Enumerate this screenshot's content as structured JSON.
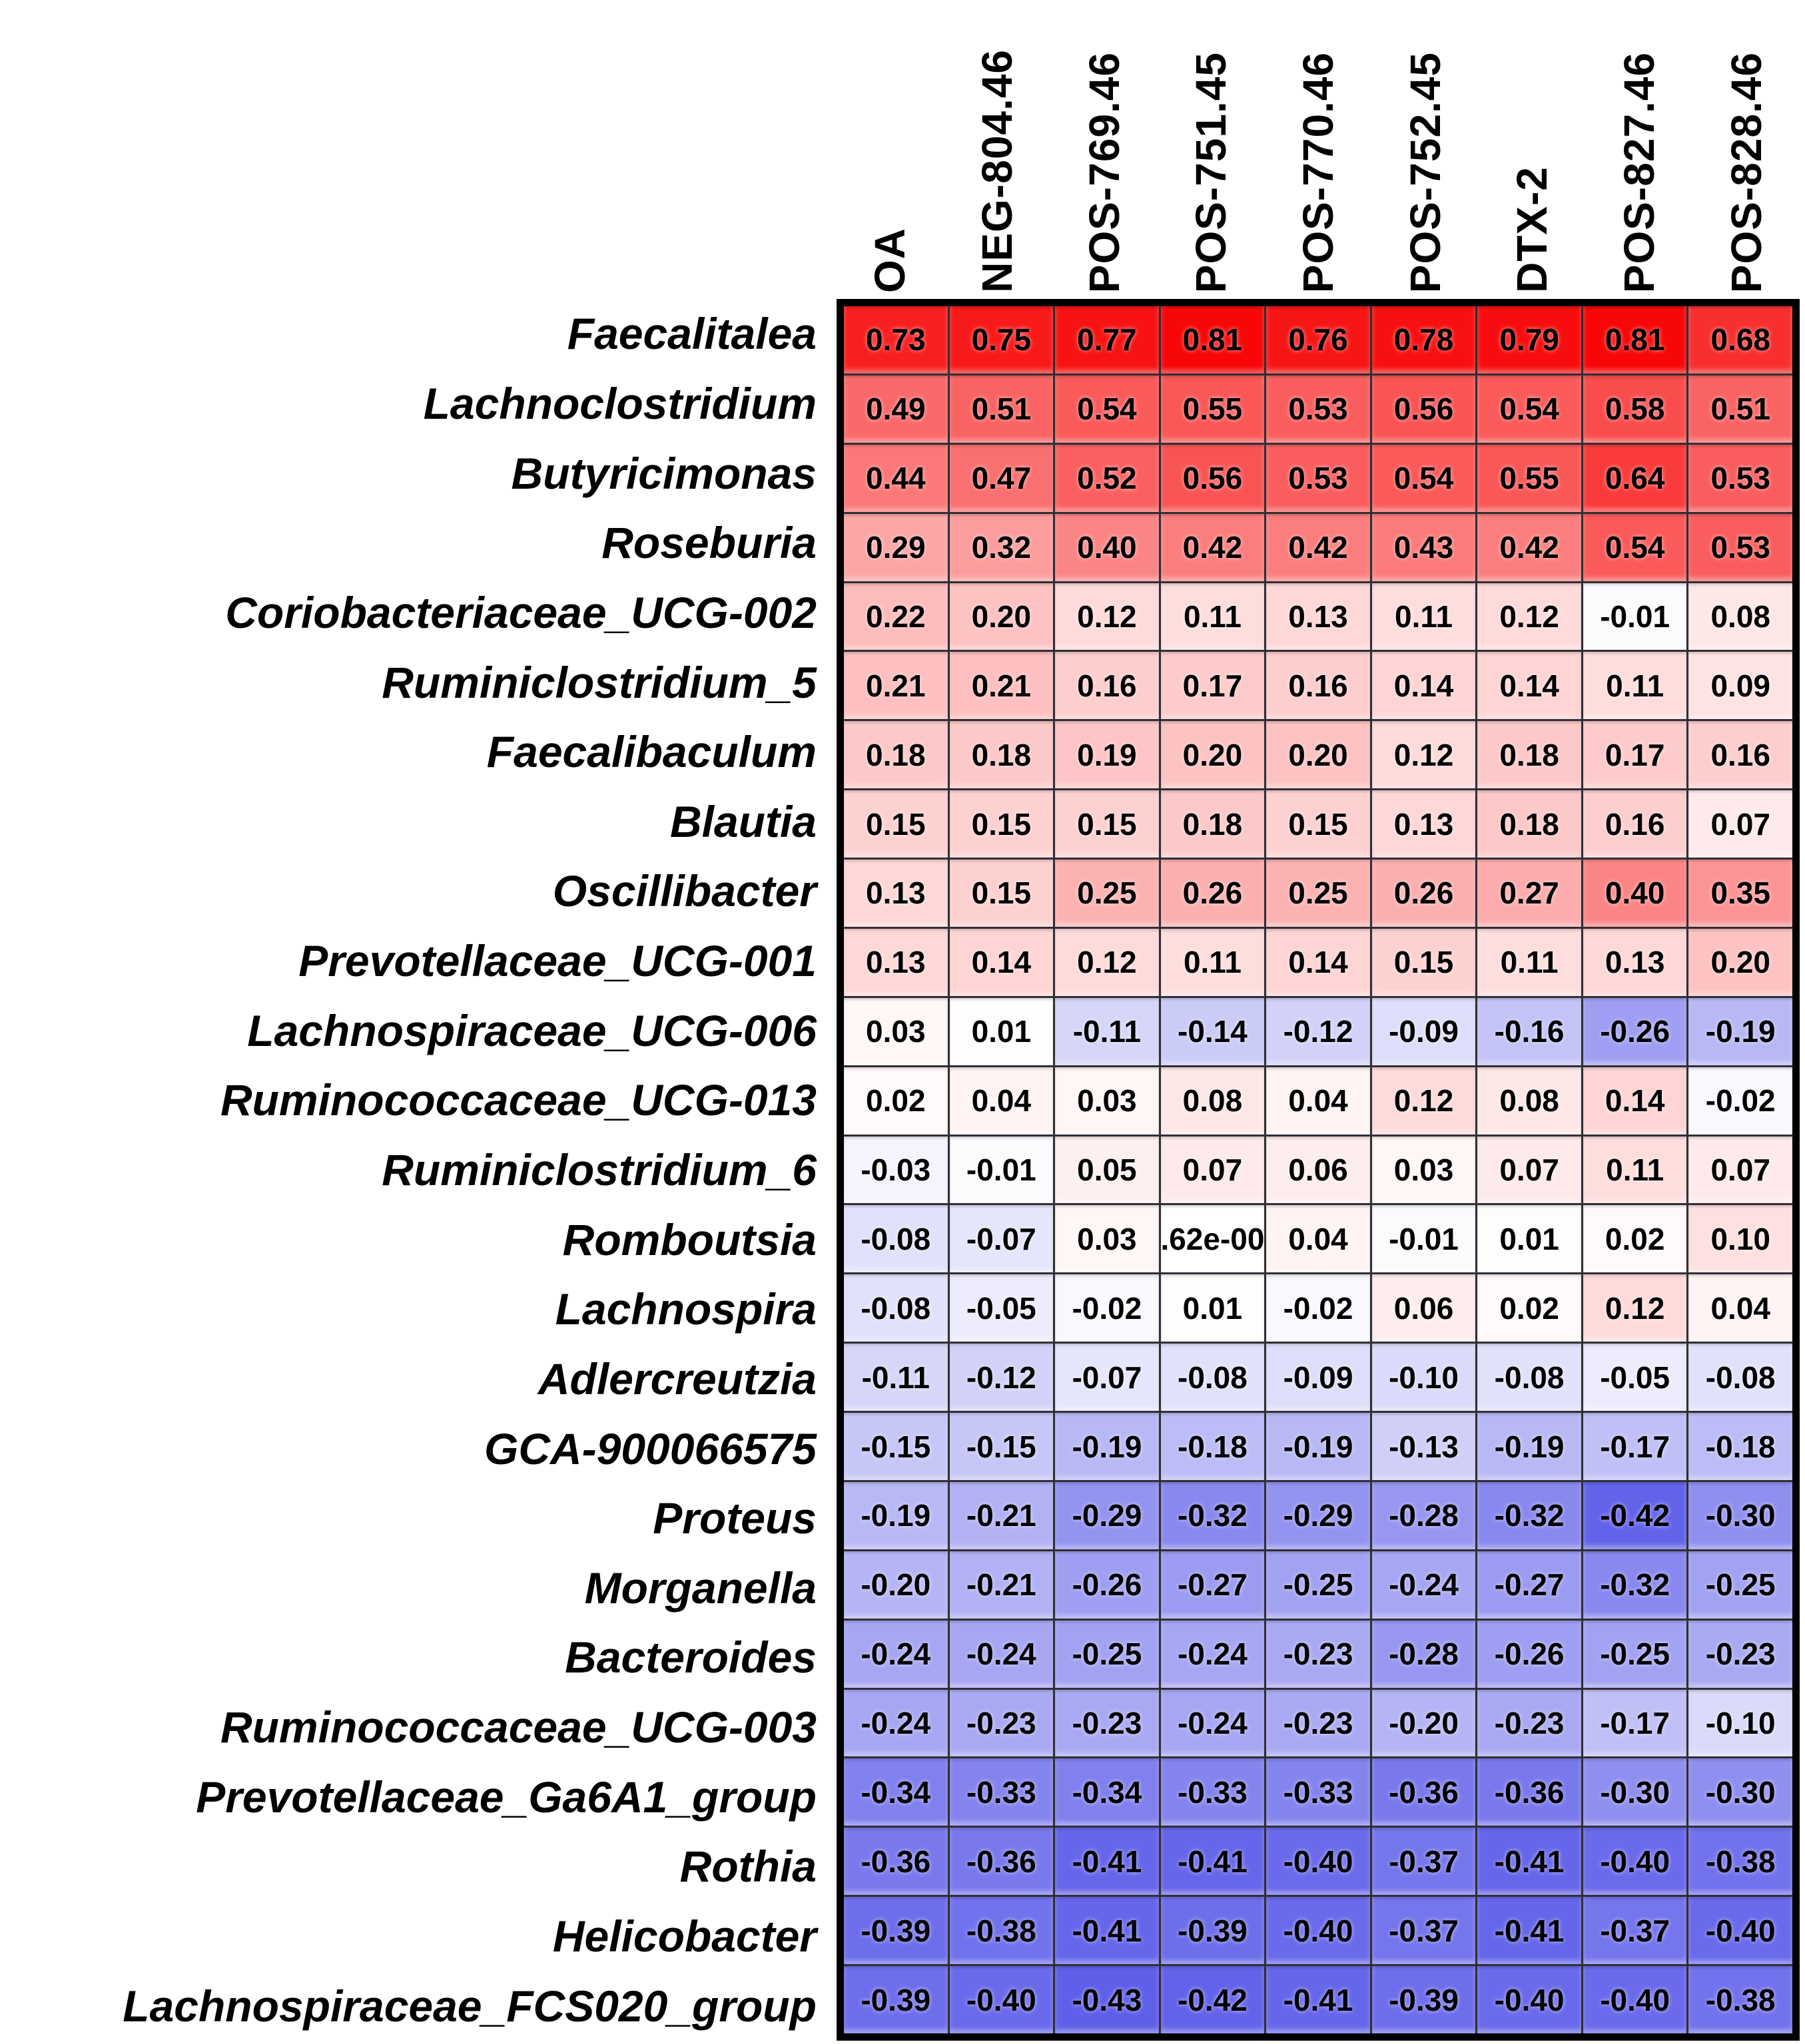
{
  "figure": {
    "background": "#ffffff"
  },
  "chart_data": {
    "type": "heatmap",
    "title": "",
    "legend": "none",
    "columns": [
      "OA",
      "NEG-804.46",
      "POS-769.46",
      "POS-751.45",
      "POS-770.46",
      "POS-752.45",
      "DTX-2",
      "POS-827.46",
      "POS-828.46"
    ],
    "rows": [
      "Faecalitalea",
      "Lachnoclostridium",
      "Butyricimonas",
      "Roseburia",
      "Coriobacteriaceae_UCG-002",
      "Ruminiclostridium_5",
      "Faecalibaculum",
      "Blautia",
      "Oscillibacter",
      "Prevotellaceae_UCG-001",
      "Lachnospiraceae_UCG-006",
      "Ruminococcaceae_UCG-013",
      "Ruminiclostridium_6",
      "Romboutsia",
      "Lachnospira",
      "Adlercreutzia",
      "GCA-900066575",
      "Proteus",
      "Morganella",
      "Bacteroides",
      "Ruminococcaceae_UCG-003",
      "Prevotellaceae_Ga6A1_group",
      "Rothia",
      "Helicobacter",
      "Lachnospiraceae_FCS020_group"
    ],
    "cells": [
      [
        "0.73",
        "0.75",
        "0.77",
        "0.81",
        "0.76",
        "0.78",
        "0.79",
        "0.81",
        "0.68"
      ],
      [
        "0.49",
        "0.51",
        "0.54",
        "0.55",
        "0.53",
        "0.56",
        "0.54",
        "0.58",
        "0.51"
      ],
      [
        "0.44",
        "0.47",
        "0.52",
        "0.56",
        "0.53",
        "0.54",
        "0.55",
        "0.64",
        "0.53"
      ],
      [
        "0.29",
        "0.32",
        "0.40",
        "0.42",
        "0.42",
        "0.43",
        "0.42",
        "0.54",
        "0.53"
      ],
      [
        "0.22",
        "0.20",
        "0.12",
        "0.11",
        "0.13",
        "0.11",
        "0.12",
        "-0.01",
        "0.08"
      ],
      [
        "0.21",
        "0.21",
        "0.16",
        "0.17",
        "0.16",
        "0.14",
        "0.14",
        "0.11",
        "0.09"
      ],
      [
        "0.18",
        "0.18",
        "0.19",
        "0.20",
        "0.20",
        "0.12",
        "0.18",
        "0.17",
        "0.16"
      ],
      [
        "0.15",
        "0.15",
        "0.15",
        "0.18",
        "0.15",
        "0.13",
        "0.18",
        "0.16",
        "0.07"
      ],
      [
        "0.13",
        "0.15",
        "0.25",
        "0.26",
        "0.25",
        "0.26",
        "0.27",
        "0.40",
        "0.35"
      ],
      [
        "0.13",
        "0.14",
        "0.12",
        "0.11",
        "0.14",
        "0.15",
        "0.11",
        "0.13",
        "0.20"
      ],
      [
        "0.03",
        "0.01",
        "-0.11",
        "-0.14",
        "-0.12",
        "-0.09",
        "-0.16",
        "-0.26",
        "-0.19"
      ],
      [
        "0.02",
        "0.04",
        "0.03",
        "0.08",
        "0.04",
        "0.12",
        "0.08",
        "0.14",
        "-0.02"
      ],
      [
        "-0.03",
        "-0.01",
        "0.05",
        "0.07",
        "0.06",
        "0.03",
        "0.07",
        "0.11",
        "0.07"
      ],
      [
        "-0.08",
        "-0.07",
        "0.03",
        ".62e-00",
        "0.04",
        "-0.01",
        "0.01",
        "0.02",
        "0.10"
      ],
      [
        "-0.08",
        "-0.05",
        "-0.02",
        "0.01",
        "-0.02",
        "0.06",
        "0.02",
        "0.12",
        "0.04"
      ],
      [
        "-0.11",
        "-0.12",
        "-0.07",
        "-0.08",
        "-0.09",
        "-0.10",
        "-0.08",
        "-0.05",
        "-0.08"
      ],
      [
        "-0.15",
        "-0.15",
        "-0.19",
        "-0.18",
        "-0.19",
        "-0.13",
        "-0.19",
        "-0.17",
        "-0.18"
      ],
      [
        "-0.19",
        "-0.21",
        "-0.29",
        "-0.32",
        "-0.29",
        "-0.28",
        "-0.32",
        "-0.42",
        "-0.30"
      ],
      [
        "-0.20",
        "-0.21",
        "-0.26",
        "-0.27",
        "-0.25",
        "-0.24",
        "-0.27",
        "-0.32",
        "-0.25"
      ],
      [
        "-0.24",
        "-0.24",
        "-0.25",
        "-0.24",
        "-0.23",
        "-0.28",
        "-0.26",
        "-0.25",
        "-0.23"
      ],
      [
        "-0.24",
        "-0.23",
        "-0.23",
        "-0.24",
        "-0.23",
        "-0.20",
        "-0.23",
        "-0.17",
        "-0.10"
      ],
      [
        "-0.34",
        "-0.33",
        "-0.34",
        "-0.33",
        "-0.33",
        "-0.36",
        "-0.36",
        "-0.30",
        "-0.30"
      ],
      [
        "-0.36",
        "-0.36",
        "-0.41",
        "-0.41",
        "-0.40",
        "-0.37",
        "-0.41",
        "-0.40",
        "-0.38"
      ],
      [
        "-0.39",
        "-0.38",
        "-0.41",
        "-0.39",
        "-0.40",
        "-0.37",
        "-0.41",
        "-0.37",
        "-0.40"
      ],
      [
        "-0.39",
        "-0.40",
        "-0.43",
        "-0.42",
        "-0.41",
        "-0.39",
        "-0.40",
        "-0.40",
        "-0.38"
      ]
    ],
    "color_scale": {
      "positive_endpoint": "#F70707",
      "negative_endpoint": "#5F5FE9",
      "midpoint": "#FFFFFF",
      "positive_max": 0.81,
      "negative_min": -0.43
    },
    "gridline_color": "#2f2f35",
    "outer_border_color": "#000000"
  }
}
